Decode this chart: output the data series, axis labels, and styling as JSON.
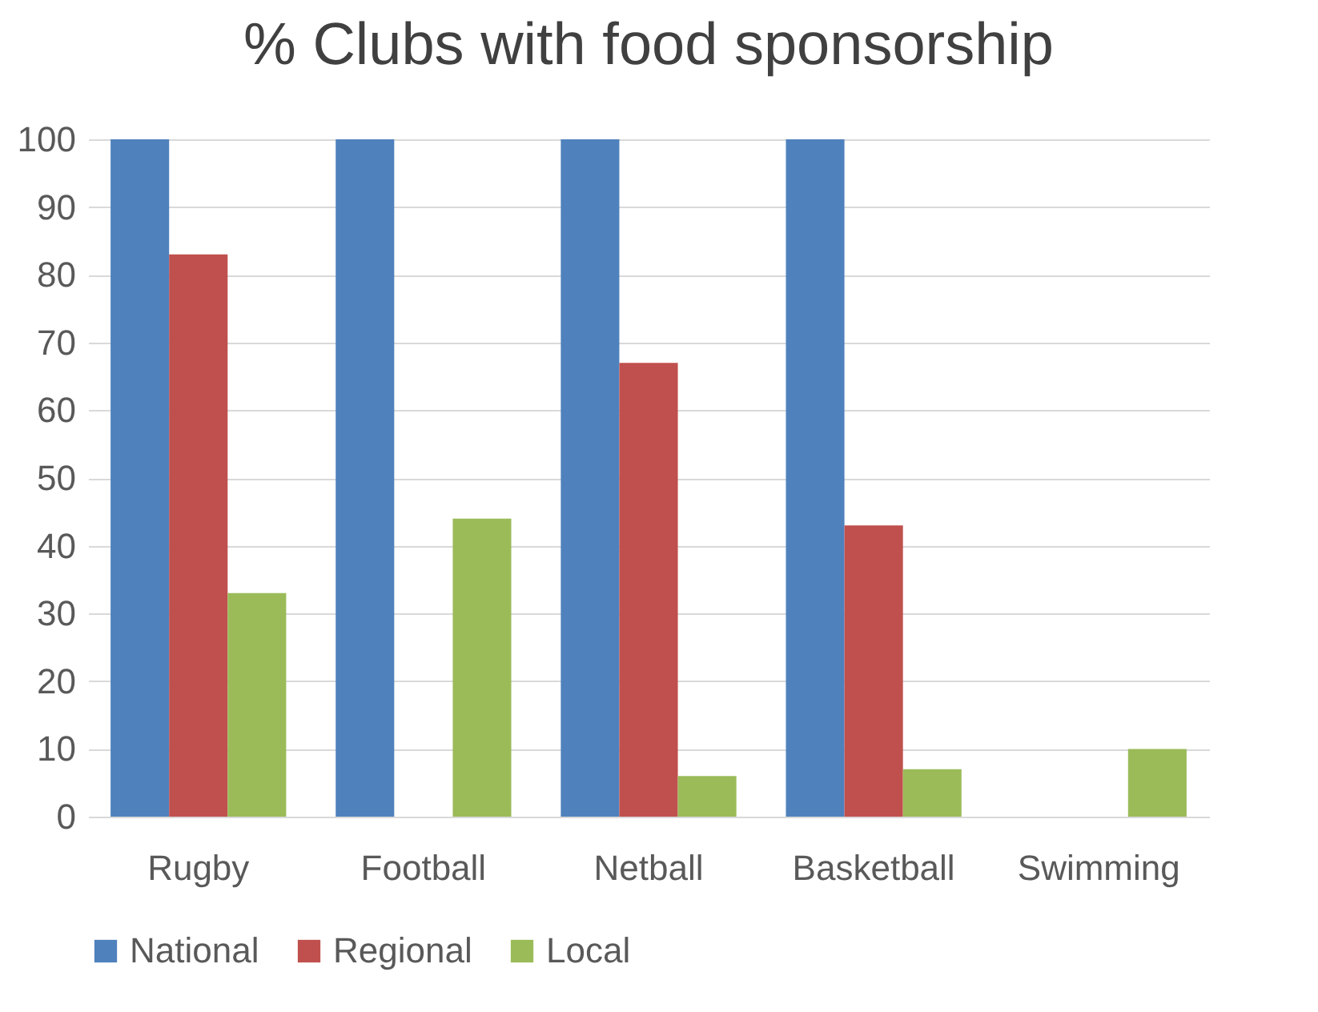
{
  "chart_data": {
    "type": "bar",
    "title": "% Clubs with food sponsorship",
    "categories": [
      "Rugby",
      "Football",
      "Netball",
      "Basketball",
      "Swimming"
    ],
    "series": [
      {
        "name": "National",
        "color": "#4f81bd",
        "values": [
          100,
          100,
          100,
          100,
          0
        ]
      },
      {
        "name": "Regional",
        "color": "#c0504d",
        "values": [
          83,
          0,
          67,
          43,
          0
        ]
      },
      {
        "name": "Local",
        "color": "#9bbb59",
        "values": [
          33,
          44,
          6,
          7,
          10
        ]
      }
    ],
    "ylim": [
      0,
      100
    ],
    "yticks": [
      0,
      10,
      20,
      30,
      40,
      50,
      60,
      70,
      80,
      90,
      100
    ],
    "grid": "y",
    "legend": "bottom"
  }
}
